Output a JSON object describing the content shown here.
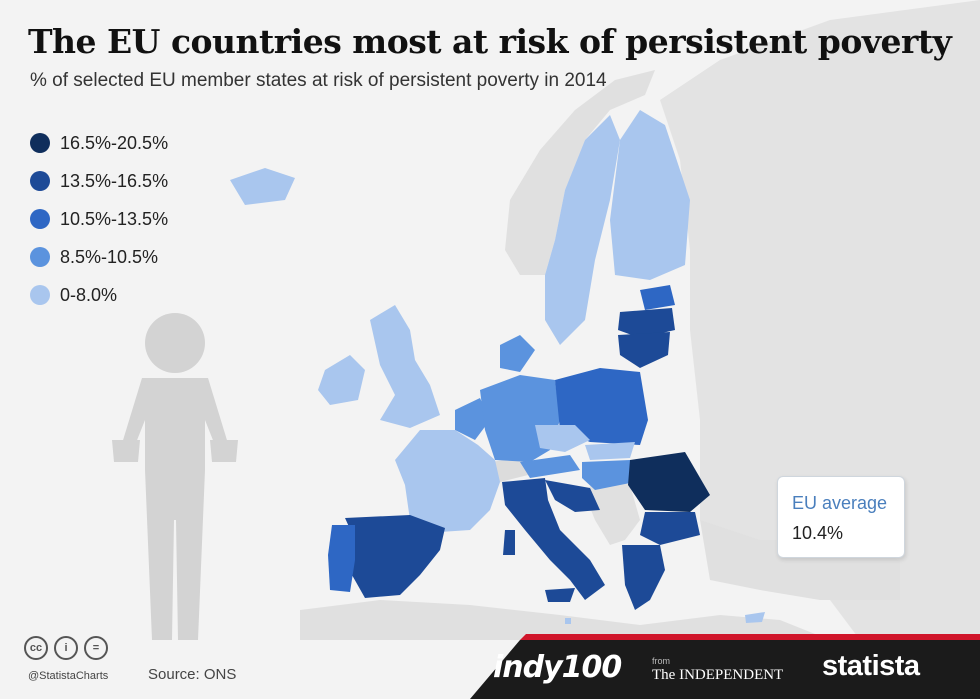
{
  "title": "The EU countries most at risk of persistent poverty",
  "subtitle": "% of selected EU member states at risk of persistent poverty in 2014",
  "legend": [
    {
      "label": "16.5%-20.5%",
      "color": "#0f2e5c"
    },
    {
      "label": "13.5%-16.5%",
      "color": "#1d4a97"
    },
    {
      "label": "10.5%-13.5%",
      "color": "#2e67c4"
    },
    {
      "label": "8.5%-10.5%",
      "color": "#5b93de"
    },
    {
      "label": "0-8.0%",
      "color": "#a9c6ee"
    }
  ],
  "eu_average": {
    "label": "EU average",
    "value": "10.4%"
  },
  "footer": {
    "handle": "@StatistaCharts",
    "source": "Source: ONS"
  },
  "brands": {
    "indy": "indy100",
    "from": "from",
    "independent": "The INDEPENDENT",
    "statista": "statista"
  },
  "colors": {
    "background_land": "#e6e6e6",
    "sea": "#ffffff",
    "non_eu_land": "#dcdcdc",
    "figure": "#d3d3d3",
    "brand_bar": "#1b1b1b",
    "brand_accent": "#d0152a"
  }
}
